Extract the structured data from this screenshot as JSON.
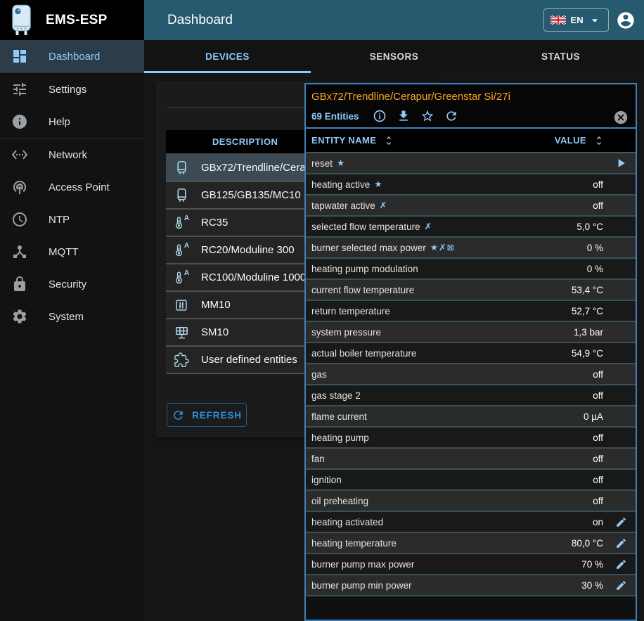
{
  "header": {
    "brand": "EMS-ESP",
    "page_title": "Dashboard",
    "language": {
      "label": "EN",
      "flag": "uk-flag"
    }
  },
  "sidebar": {
    "items": [
      {
        "label": "Dashboard",
        "icon": "dashboard-icon",
        "active": true,
        "divider_after": true
      },
      {
        "label": "Settings",
        "icon": "tune-icon",
        "active": false,
        "divider_after": false
      },
      {
        "label": "Help",
        "icon": "info-icon",
        "active": false,
        "divider_after": true
      },
      {
        "label": "Network",
        "icon": "ethernet-icon",
        "active": false,
        "divider_after": false
      },
      {
        "label": "Access Point",
        "icon": "wifi-tethering-icon",
        "active": false,
        "divider_after": false
      },
      {
        "label": "NTP",
        "icon": "clock-icon",
        "active": false,
        "divider_after": false
      },
      {
        "label": "MQTT",
        "icon": "hub-icon",
        "active": false,
        "divider_after": false
      },
      {
        "label": "Security",
        "icon": "lock-icon",
        "active": false,
        "divider_after": false
      },
      {
        "label": "System",
        "icon": "gear-icon",
        "active": false,
        "divider_after": false
      }
    ]
  },
  "tabs": {
    "items": [
      {
        "label": "DEVICES",
        "active": true
      },
      {
        "label": "SENSORS",
        "active": false
      },
      {
        "label": "STATUS",
        "active": false
      }
    ]
  },
  "devices_table": {
    "column_header": "DESCRIPTION",
    "refresh_button": "REFRESH",
    "rows": [
      {
        "name": "GBx72/Trendline/Cerapur/Greenstar Si/27i",
        "icon": "boiler-icon",
        "selected": true
      },
      {
        "name": "GB125/GB135/MC10",
        "icon": "boiler-icon",
        "selected": false
      },
      {
        "name": "RC35",
        "icon": "thermostat-icon",
        "selected": false
      },
      {
        "name": "RC20/Moduline 300",
        "icon": "thermostat-icon",
        "selected": false
      },
      {
        "name": "RC100/Moduline 1000",
        "icon": "thermostat-icon",
        "selected": false
      },
      {
        "name": "MM10",
        "icon": "mixer-icon",
        "selected": false
      },
      {
        "name": "SM10",
        "icon": "solar-icon",
        "selected": false
      },
      {
        "name": "User defined entities",
        "icon": "puzzle-icon",
        "selected": false
      }
    ]
  },
  "device_panel": {
    "title": "GBx72/Trendline/Cerapur/Greenstar Si/27i",
    "entity_count": "69 Entities",
    "toolbar_icons": [
      "info-outline-icon",
      "download-icon",
      "star-outline-icon",
      "refresh-icon"
    ],
    "columns": [
      {
        "label": "ENTITY NAME"
      },
      {
        "label": "VALUE"
      }
    ],
    "rows": [
      {
        "name": "reset",
        "flags": [
          "star"
        ],
        "value": "",
        "action": "play"
      },
      {
        "name": "heating active",
        "flags": [
          "star"
        ],
        "value": "off",
        "action": ""
      },
      {
        "name": "tapwater active",
        "flags": [
          "flash-off"
        ],
        "value": "off",
        "action": ""
      },
      {
        "name": "selected flow temperature",
        "flags": [
          "flash-off"
        ],
        "value": "5,0 °C",
        "action": ""
      },
      {
        "name": "burner selected max power",
        "flags": [
          "star",
          "flash-off",
          "web-off"
        ],
        "value": "0 %",
        "action": ""
      },
      {
        "name": "heating pump modulation",
        "flags": [],
        "value": "0 %",
        "action": ""
      },
      {
        "name": "current flow temperature",
        "flags": [],
        "value": "53,4 °C",
        "action": ""
      },
      {
        "name": "return temperature",
        "flags": [],
        "value": "52,7 °C",
        "action": ""
      },
      {
        "name": "system pressure",
        "flags": [],
        "value": "1,3 bar",
        "action": ""
      },
      {
        "name": "actual boiler temperature",
        "flags": [],
        "value": "54,9 °C",
        "action": ""
      },
      {
        "name": "gas",
        "flags": [],
        "value": "off",
        "action": ""
      },
      {
        "name": "gas stage 2",
        "flags": [],
        "value": "off",
        "action": ""
      },
      {
        "name": "flame current",
        "flags": [],
        "value": "0 µA",
        "action": ""
      },
      {
        "name": "heating pump",
        "flags": [],
        "value": "off",
        "action": ""
      },
      {
        "name": "fan",
        "flags": [],
        "value": "off",
        "action": ""
      },
      {
        "name": "ignition",
        "flags": [],
        "value": "off",
        "action": ""
      },
      {
        "name": "oil preheating",
        "flags": [],
        "value": "off",
        "action": ""
      },
      {
        "name": "heating activated",
        "flags": [],
        "value": "on",
        "action": "edit"
      },
      {
        "name": "heating temperature",
        "flags": [],
        "value": "80,0 °C",
        "action": "edit"
      },
      {
        "name": "burner pump max power",
        "flags": [],
        "value": "70 %",
        "action": "edit"
      },
      {
        "name": "burner pump min power",
        "flags": [],
        "value": "30 %",
        "action": "edit"
      }
    ]
  },
  "colors": {
    "appbar": "#265a6e",
    "accent_blue": "#90caf9",
    "title_orange": "#ffa726",
    "panel_border": "#4080b8",
    "refresh_blue": "#2792e0",
    "selected_row": "#3b4a54"
  }
}
